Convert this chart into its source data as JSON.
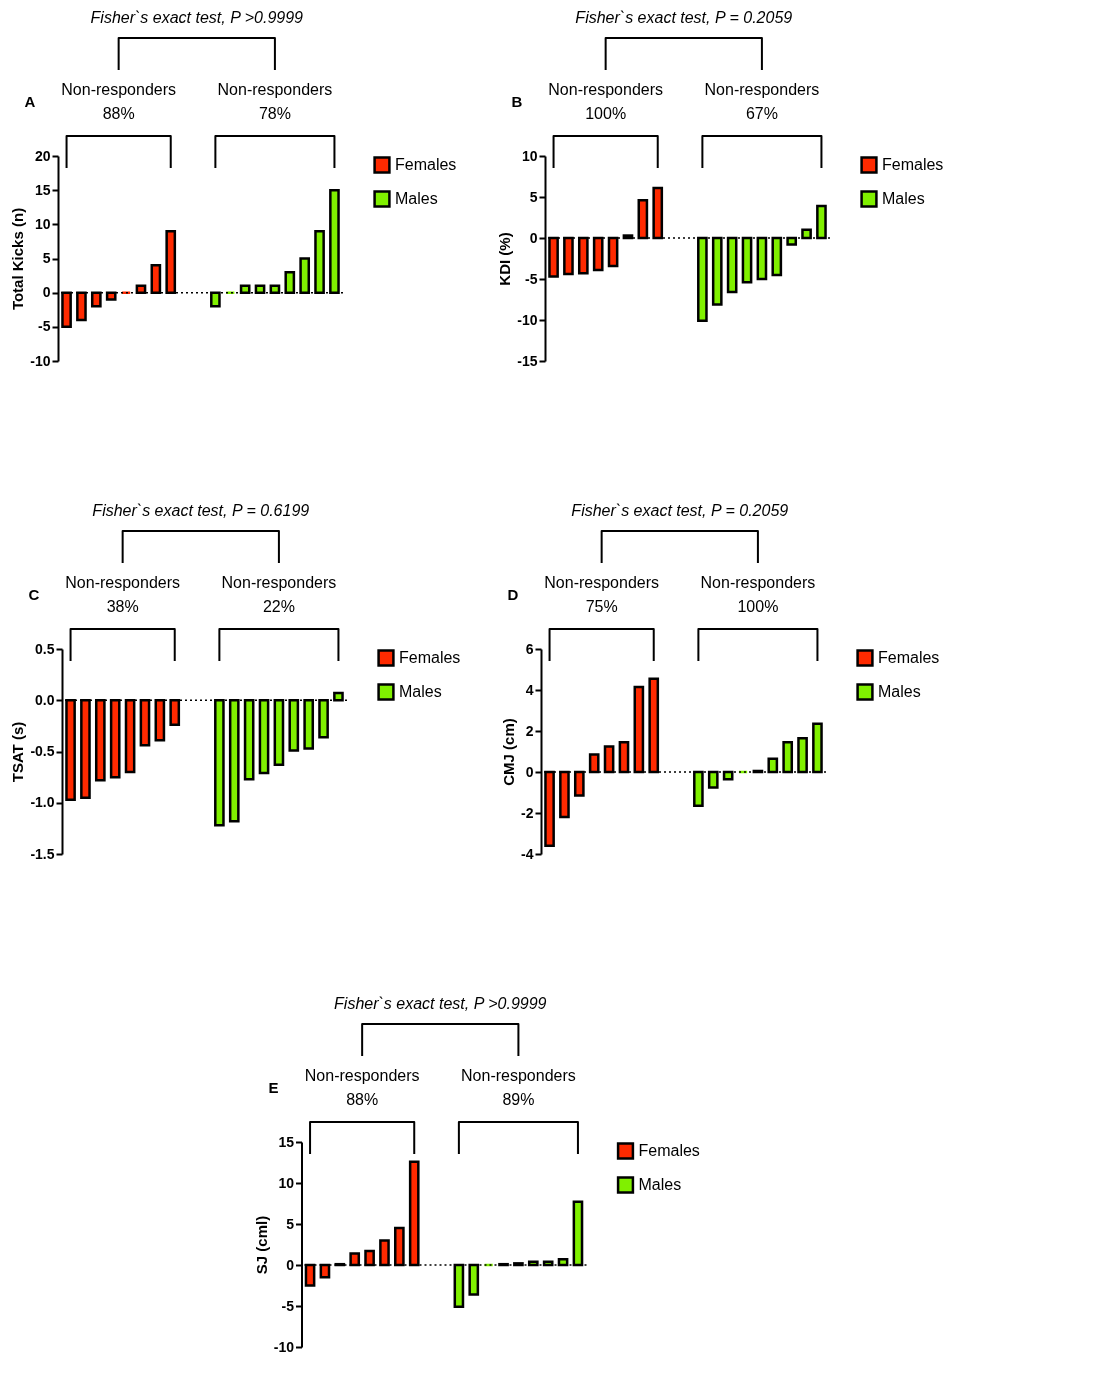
{
  "chart_data": [
    {
      "type": "bar",
      "title": "Fisher`s exact test, P >0.9999",
      "ylabel": "Total Kicks (n)",
      "annotations": [
        "A",
        "Non-responders",
        "88%",
        "Non-responders",
        "78%"
      ],
      "categories": [
        null,
        null,
        null,
        null,
        null,
        null,
        null,
        null,
        null,
        null,
        null,
        null,
        null,
        null,
        null,
        null,
        null,
        null,
        null
      ],
      "series": [
        {
          "name": "Females",
          "color": "#ff2a00",
          "values": [
            -5,
            -4,
            -2,
            -1,
            0,
            1,
            4,
            9,
            null,
            null,
            null,
            null,
            null,
            null,
            null,
            null,
            null,
            null,
            null
          ]
        },
        {
          "name": "Males",
          "color": "#80f000",
          "values": [
            null,
            null,
            null,
            null,
            null,
            null,
            null,
            null,
            null,
            null,
            -2,
            0,
            1,
            1,
            1,
            3,
            5,
            9,
            15
          ]
        }
      ],
      "ylim": [
        -10,
        20
      ],
      "yticks": [
        -10,
        -5,
        0,
        5,
        10,
        15,
        20
      ],
      "ref_lines": [
        {
          "axis": "y",
          "value": 0,
          "line_style": "dotted",
          "color": "#000000"
        }
      ],
      "legend": "right",
      "tick_labels": "y",
      "grid": false
    },
    {
      "type": "bar",
      "title": "Fisher`s exact test, P = 0.2059",
      "ylabel": "KDI (%)",
      "annotations": [
        "B",
        "Non-responders",
        "100%",
        "Non-responders",
        "67%"
      ],
      "categories": [
        null,
        null,
        null,
        null,
        null,
        null,
        null,
        null,
        null,
        null,
        null,
        null,
        null,
        null,
        null,
        null,
        null,
        null,
        null
      ],
      "series": [
        {
          "name": "Females",
          "color": "#ff2a00",
          "values": [
            -4.7,
            -4.4,
            -4.3,
            -3.9,
            -3.4,
            0.3,
            4.6,
            6.1,
            null,
            null,
            null,
            null,
            null,
            null,
            null,
            null,
            null,
            null,
            null
          ]
        },
        {
          "name": "Males",
          "color": "#80f000",
          "values": [
            null,
            null,
            null,
            null,
            null,
            null,
            null,
            null,
            null,
            null,
            -10.1,
            -8.1,
            -6.6,
            -5.4,
            -5.0,
            -4.5,
            -0.8,
            1.0,
            3.9
          ]
        }
      ],
      "ylim": [
        -15,
        10
      ],
      "yticks": [
        -15,
        -10,
        -5,
        0,
        5,
        10
      ],
      "ref_lines": [
        {
          "axis": "y",
          "value": 0,
          "line_style": "dotted",
          "color": "#000000"
        }
      ],
      "legend": "right",
      "tick_labels": "y",
      "grid": false
    },
    {
      "type": "bar",
      "title": "Fisher`s exact test, P = 0.6199",
      "ylabel": "TSAT (s)",
      "annotations": [
        "C",
        "Non-responders",
        "38%",
        "Non-responders",
        "22%"
      ],
      "categories": [
        null,
        null,
        null,
        null,
        null,
        null,
        null,
        null,
        null,
        null,
        null,
        null,
        null,
        null,
        null,
        null,
        null,
        null,
        null
      ],
      "series": [
        {
          "name": "Females",
          "color": "#ff2a00",
          "values": [
            -0.97,
            -0.95,
            -0.78,
            -0.75,
            -0.7,
            -0.44,
            -0.39,
            -0.24,
            null,
            null,
            null,
            null,
            null,
            null,
            null,
            null,
            null,
            null,
            null
          ]
        },
        {
          "name": "Males",
          "color": "#80f000",
          "values": [
            null,
            null,
            null,
            null,
            null,
            null,
            null,
            null,
            null,
            null,
            -1.22,
            -1.18,
            -0.77,
            -0.71,
            -0.63,
            -0.49,
            -0.47,
            -0.36,
            0.07
          ]
        }
      ],
      "ylim": [
        -1.5,
        0.5
      ],
      "yticks": [
        {
          "value": -1.5,
          "label": "-1.5"
        },
        {
          "value": -1,
          "label": "-1.0"
        },
        {
          "value": -0.5,
          "label": "-0.5"
        },
        {
          "value": 0,
          "label": "0.0"
        },
        {
          "value": 0.5,
          "label": "0.5"
        }
      ],
      "ref_lines": [
        {
          "axis": "y",
          "value": 0,
          "line_style": "dotted",
          "color": "#000000"
        }
      ],
      "legend": "right",
      "tick_labels": "y",
      "grid": false
    },
    {
      "type": "bar",
      "title": "Fisher`s exact test, P = 0.2059",
      "ylabel": "CMJ (cm)",
      "annotations": [
        "D",
        "Non-responders",
        "75%",
        "Non-responders",
        "100%"
      ],
      "categories": [
        null,
        null,
        null,
        null,
        null,
        null,
        null,
        null,
        null,
        null,
        null,
        null,
        null,
        null,
        null,
        null,
        null,
        null,
        null
      ],
      "series": [
        {
          "name": "Females",
          "color": "#ff2a00",
          "values": [
            -3.6,
            -2.2,
            -1.15,
            0.85,
            1.25,
            1.45,
            4.15,
            4.55,
            null,
            null,
            null,
            null,
            null,
            null,
            null,
            null,
            null,
            null,
            null
          ]
        },
        {
          "name": "Males",
          "color": "#80f000",
          "values": [
            null,
            null,
            null,
            null,
            null,
            null,
            null,
            null,
            null,
            null,
            -1.65,
            -0.75,
            -0.35,
            0,
            0.05,
            0.65,
            1.45,
            1.65,
            2.35
          ]
        }
      ],
      "ylim": [
        -4,
        6
      ],
      "yticks": [
        -4,
        -2,
        0,
        2,
        4,
        6
      ],
      "ref_lines": [
        {
          "axis": "y",
          "value": 0,
          "line_style": "dotted",
          "color": "#000000"
        }
      ],
      "legend": "right",
      "tick_labels": "y",
      "grid": false
    },
    {
      "type": "bar",
      "title": "Fisher`s exact test, P >0.9999",
      "ylabel": "SJ (cml)",
      "annotations": [
        "E",
        "Non-responders",
        "88%",
        "Non-responders",
        "89%"
      ],
      "categories": [
        null,
        null,
        null,
        null,
        null,
        null,
        null,
        null,
        null,
        null,
        null,
        null,
        null,
        null,
        null,
        null,
        null,
        null,
        null
      ],
      "series": [
        {
          "name": "Females",
          "color": "#ff2a00",
          "values": [
            -2.5,
            -1.5,
            0.1,
            1.4,
            1.7,
            3.0,
            4.5,
            12.6,
            null,
            null,
            null,
            null,
            null,
            null,
            null,
            null,
            null,
            null,
            null
          ]
        },
        {
          "name": "Males",
          "color": "#80f000",
          "values": [
            null,
            null,
            null,
            null,
            null,
            null,
            null,
            null,
            null,
            null,
            -5.1,
            -3.6,
            0,
            0.1,
            0.2,
            0.4,
            0.4,
            0.7,
            7.7
          ]
        }
      ],
      "ylim": [
        -10,
        15
      ],
      "yticks": [
        -10,
        -5,
        0,
        5,
        10,
        15
      ],
      "ref_lines": [
        {
          "axis": "y",
          "value": 0,
          "line_style": "dotted",
          "color": "#000000"
        }
      ],
      "legend": "right",
      "tick_labels": "y",
      "grid": false
    }
  ]
}
